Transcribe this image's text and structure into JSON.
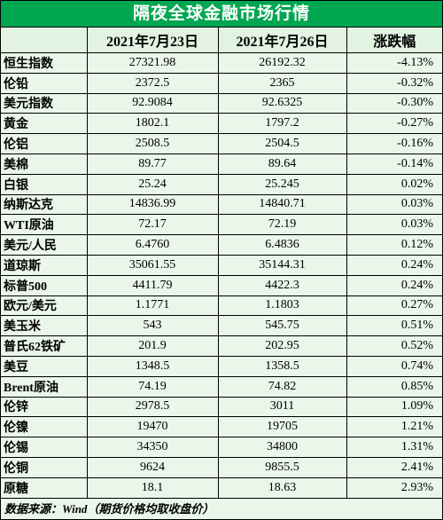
{
  "title": "隔夜全球金融市场行情",
  "table": {
    "header": [
      "2021年7月23日",
      "2021年7月26日",
      "涨跌幅"
    ],
    "rows": [
      [
        "恒生指数",
        "27321.98",
        "26192.32",
        "-4.13%"
      ],
      [
        "伦铅",
        "2372.5",
        "2365",
        "-0.32%"
      ],
      [
        "美元指数",
        "92.9084",
        "92.6325",
        "-0.30%"
      ],
      [
        "黄金",
        "1802.1",
        "1797.2",
        "-0.27%"
      ],
      [
        "伦铝",
        "2508.5",
        "2504.5",
        "-0.16%"
      ],
      [
        "美棉",
        "89.77",
        "89.64",
        "-0.14%"
      ],
      [
        "白银",
        "25.24",
        "25.245",
        "0.02%"
      ],
      [
        "纳斯达克",
        "14836.99",
        "14840.71",
        "0.03%"
      ],
      [
        "WTI原油",
        "72.17",
        "72.19",
        "0.03%"
      ],
      [
        "美元/人民",
        "6.4760",
        "6.4836",
        "0.12%"
      ],
      [
        "道琼斯",
        "35061.55",
        "35144.31",
        "0.24%"
      ],
      [
        "标普500",
        "4411.79",
        "4422.3",
        "0.24%"
      ],
      [
        "欧元/美元",
        "1.1771",
        "1.1803",
        "0.27%"
      ],
      [
        "美玉米",
        "543",
        "545.75",
        "0.51%"
      ],
      [
        "普氏62铁矿",
        "201.9",
        "202.95",
        "0.52%"
      ],
      [
        "美豆",
        "1348.5",
        "1358.5",
        "0.74%"
      ],
      [
        "Brent原油",
        "74.19",
        "74.82",
        "0.85%"
      ],
      [
        "伦锌",
        "2978.5",
        "3011",
        "1.09%"
      ],
      [
        "伦镍",
        "19470",
        "19705",
        "1.21%"
      ],
      [
        "伦锡",
        "34350",
        "34800",
        "1.31%"
      ],
      [
        "伦铜",
        "9624",
        "9855.5",
        "2.41%"
      ],
      [
        "原糖",
        "18.1",
        "18.63",
        "2.93%"
      ]
    ]
  },
  "footer": "数据来源：Wind（期货价格均取收盘价）"
}
